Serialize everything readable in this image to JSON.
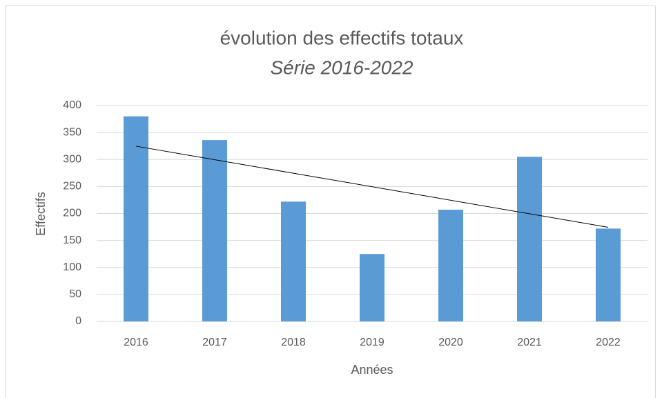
{
  "chart_data": {
    "type": "bar",
    "title": "évolution des effectifs totaux",
    "subtitle": "Série 2016-2022",
    "x_label": "Années",
    "y_label": "Effectifs",
    "categories": [
      "2016",
      "2017",
      "2018",
      "2019",
      "2020",
      "2021",
      "2022"
    ],
    "values": [
      380,
      336,
      222,
      125,
      207,
      305,
      172
    ],
    "color": "#5b9bd5",
    "ylim": [
      0,
      400
    ],
    "yticks": [
      0,
      50,
      100,
      150,
      200,
      250,
      300,
      350,
      400
    ],
    "grid": true,
    "trendline": "linear"
  }
}
